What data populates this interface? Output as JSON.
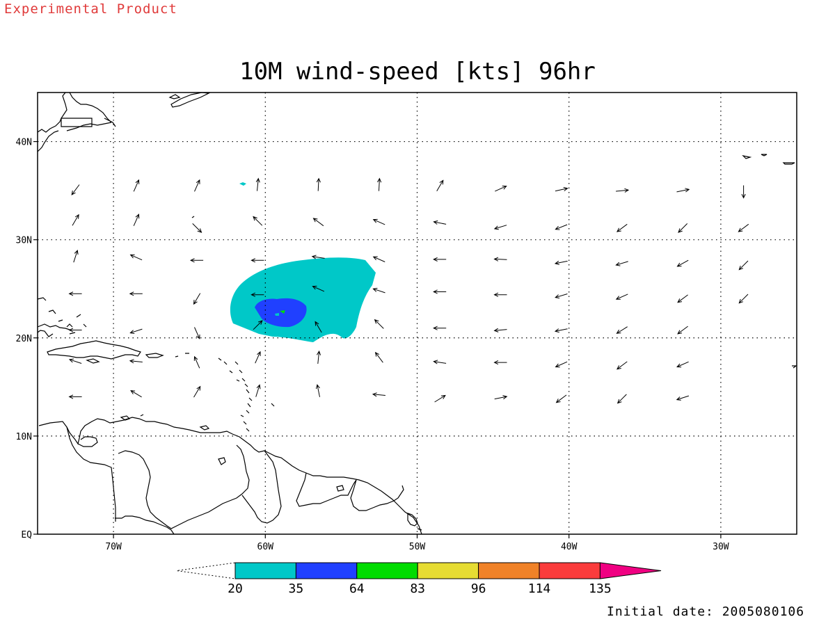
{
  "header": {
    "product_label": "Experimental Product",
    "title": "10M wind-speed [kts] 96hr"
  },
  "map": {
    "lon_ticks": [
      "70W",
      "60W",
      "50W",
      "40W",
      "30W"
    ],
    "lat_ticks": [
      "EQ",
      "10N",
      "20N",
      "30N",
      "40N"
    ],
    "lon_range": [
      -75,
      -25
    ],
    "lat_range": [
      0,
      45
    ],
    "grid": true
  },
  "colorbar": {
    "ticks": [
      "20",
      "35",
      "64",
      "83",
      "96",
      "114",
      "135"
    ],
    "colors": [
      "#00c8c8",
      "#2040ff",
      "#00dc00",
      "#e6dc32",
      "#f08228",
      "#fa3c3c",
      "#f00082"
    ]
  },
  "footer": {
    "initial_date": "Initial date: 2005080106"
  },
  "wind_vectors": [
    {
      "lon": -72.5,
      "lat": 35.1,
      "u": -0.6,
      "v": -0.8
    },
    {
      "lon": -68.5,
      "lat": 35.5,
      "u": 0.4,
      "v": 0.9
    },
    {
      "lon": -64.5,
      "lat": 35.5,
      "u": 0.4,
      "v": 0.9
    },
    {
      "lon": -60.5,
      "lat": 35.6,
      "u": 0.1,
      "v": 1.0
    },
    {
      "lon": -56.5,
      "lat": 35.6,
      "u": 0.05,
      "v": 1.0
    },
    {
      "lon": -52.5,
      "lat": 35.6,
      "u": 0.05,
      "v": 1.0
    },
    {
      "lon": -48.5,
      "lat": 35.5,
      "u": 0.5,
      "v": 0.85
    },
    {
      "lon": -44.5,
      "lat": 35.2,
      "u": 0.9,
      "v": 0.4
    },
    {
      "lon": -40.5,
      "lat": 35.1,
      "u": 0.95,
      "v": 0.2
    },
    {
      "lon": -36.5,
      "lat": 35.0,
      "u": 1.0,
      "v": 0.1
    },
    {
      "lon": -32.5,
      "lat": 35.0,
      "u": 1.0,
      "v": 0.2
    },
    {
      "lon": -28.5,
      "lat": 34.9,
      "u": 0.0,
      "v": -1.0
    },
    {
      "lon": -72.5,
      "lat": 32.0,
      "u": 0.5,
      "v": 0.85
    },
    {
      "lon": -68.5,
      "lat": 32.0,
      "u": 0.4,
      "v": 0.9
    },
    {
      "lon": -64.5,
      "lat": 31.2,
      "u": 0.7,
      "v": -0.7
    },
    {
      "lon": -60.5,
      "lat": 31.9,
      "u": -0.7,
      "v": 0.7
    },
    {
      "lon": -56.5,
      "lat": 31.8,
      "u": -0.8,
      "v": 0.6
    },
    {
      "lon": -52.5,
      "lat": 31.8,
      "u": -0.9,
      "v": 0.4
    },
    {
      "lon": -48.5,
      "lat": 31.7,
      "u": -1.0,
      "v": 0.2
    },
    {
      "lon": -44.5,
      "lat": 31.3,
      "u": -1.0,
      "v": -0.3
    },
    {
      "lon": -40.5,
      "lat": 31.3,
      "u": -1.0,
      "v": -0.4
    },
    {
      "lon": -36.5,
      "lat": 31.2,
      "u": -0.8,
      "v": -0.6
    },
    {
      "lon": -32.5,
      "lat": 31.2,
      "u": -0.7,
      "v": -0.7
    },
    {
      "lon": -28.5,
      "lat": 31.2,
      "u": -0.8,
      "v": -0.6
    },
    {
      "lon": -72.5,
      "lat": 28.3,
      "u": 0.3,
      "v": 0.95
    },
    {
      "lon": -68.5,
      "lat": 28.2,
      "u": -0.9,
      "v": 0.4
    },
    {
      "lon": -64.5,
      "lat": 27.9,
      "u": -1.0,
      "v": 0.0
    },
    {
      "lon": -60.5,
      "lat": 27.9,
      "u": -1.0,
      "v": 0.0
    },
    {
      "lon": -56.5,
      "lat": 28.2,
      "u": -1.0,
      "v": 0.15
    },
    {
      "lon": -52.5,
      "lat": 28.0,
      "u": -0.9,
      "v": 0.4
    },
    {
      "lon": -48.5,
      "lat": 28.0,
      "u": -1.0,
      "v": 0.0
    },
    {
      "lon": -44.5,
      "lat": 28.0,
      "u": -1.0,
      "v": 0.05
    },
    {
      "lon": -40.5,
      "lat": 27.7,
      "u": -1.0,
      "v": -0.2
    },
    {
      "lon": -36.5,
      "lat": 27.6,
      "u": -1.0,
      "v": -0.3
    },
    {
      "lon": -32.5,
      "lat": 27.6,
      "u": -0.9,
      "v": -0.5
    },
    {
      "lon": -28.5,
      "lat": 27.4,
      "u": -0.7,
      "v": -0.7
    },
    {
      "lon": -72.5,
      "lat": 24.5,
      "u": -1.0,
      "v": 0.0
    },
    {
      "lon": -68.5,
      "lat": 24.5,
      "u": -1.0,
      "v": 0.0
    },
    {
      "lon": -64.5,
      "lat": 24.0,
      "u": -0.5,
      "v": -0.85
    },
    {
      "lon": -60.5,
      "lat": 24.4,
      "u": -1.0,
      "v": 0.0
    },
    {
      "lon": -56.5,
      "lat": 25.0,
      "u": -0.9,
      "v": 0.4
    },
    {
      "lon": -52.5,
      "lat": 24.8,
      "u": -0.9,
      "v": 0.3
    },
    {
      "lon": -48.5,
      "lat": 24.7,
      "u": -1.0,
      "v": 0.0
    },
    {
      "lon": -44.5,
      "lat": 24.4,
      "u": -1.0,
      "v": 0.0
    },
    {
      "lon": -40.5,
      "lat": 24.3,
      "u": -1.0,
      "v": -0.3
    },
    {
      "lon": -36.5,
      "lat": 24.2,
      "u": -0.9,
      "v": -0.4
    },
    {
      "lon": -32.5,
      "lat": 24.0,
      "u": -0.8,
      "v": -0.6
    },
    {
      "lon": -28.5,
      "lat": 24.0,
      "u": -0.7,
      "v": -0.7
    },
    {
      "lon": -72.5,
      "lat": 20.8,
      "u": -1.0,
      "v": 0.0
    },
    {
      "lon": -68.5,
      "lat": 20.7,
      "u": -0.9,
      "v": -0.3
    },
    {
      "lon": -64.5,
      "lat": 20.5,
      "u": 0.4,
      "v": -0.9
    },
    {
      "lon": -60.5,
      "lat": 21.3,
      "u": 0.7,
      "v": 0.7
    },
    {
      "lon": -56.5,
      "lat": 21.1,
      "u": -0.5,
      "v": 0.85
    },
    {
      "lon": -52.5,
      "lat": 21.4,
      "u": -0.7,
      "v": 0.7
    },
    {
      "lon": -48.5,
      "lat": 21.0,
      "u": -1.0,
      "v": 0.0
    },
    {
      "lon": -44.5,
      "lat": 20.8,
      "u": -1.0,
      "v": -0.1
    },
    {
      "lon": -40.5,
      "lat": 20.8,
      "u": -1.0,
      "v": -0.2
    },
    {
      "lon": -36.5,
      "lat": 20.8,
      "u": -0.8,
      "v": -0.5
    },
    {
      "lon": -32.5,
      "lat": 20.8,
      "u": -0.8,
      "v": -0.6
    },
    {
      "lon": -72.5,
      "lat": 17.6,
      "u": -0.9,
      "v": 0.3
    },
    {
      "lon": -68.5,
      "lat": 17.6,
      "u": -1.0,
      "v": 0.1
    },
    {
      "lon": -64.5,
      "lat": 17.5,
      "u": -0.4,
      "v": 0.9
    },
    {
      "lon": -60.5,
      "lat": 18.0,
      "u": 0.4,
      "v": 0.9
    },
    {
      "lon": -56.5,
      "lat": 18.0,
      "u": 0.1,
      "v": 1.0
    },
    {
      "lon": -52.5,
      "lat": 18.0,
      "u": -0.6,
      "v": 0.8
    },
    {
      "lon": -48.5,
      "lat": 17.5,
      "u": -1.0,
      "v": 0.15
    },
    {
      "lon": -44.5,
      "lat": 17.5,
      "u": -1.0,
      "v": 0.0
    },
    {
      "lon": -40.5,
      "lat": 17.3,
      "u": -0.9,
      "v": -0.4
    },
    {
      "lon": -36.5,
      "lat": 17.2,
      "u": -0.8,
      "v": -0.6
    },
    {
      "lon": -32.5,
      "lat": 17.3,
      "u": -0.9,
      "v": -0.4
    },
    {
      "lon": -72.5,
      "lat": 14.0,
      "u": -1.0,
      "v": 0.0
    },
    {
      "lon": -68.5,
      "lat": 14.3,
      "u": -0.85,
      "v": 0.5
    },
    {
      "lon": -64.5,
      "lat": 14.5,
      "u": 0.5,
      "v": 0.85
    },
    {
      "lon": -60.5,
      "lat": 14.6,
      "u": 0.3,
      "v": 0.95
    },
    {
      "lon": -56.5,
      "lat": 14.6,
      "u": -0.2,
      "v": 0.98
    },
    {
      "lon": -52.5,
      "lat": 14.2,
      "u": -1.0,
      "v": 0.1
    },
    {
      "lon": -48.5,
      "lat": 13.8,
      "u": 0.8,
      "v": 0.5
    },
    {
      "lon": -44.5,
      "lat": 13.9,
      "u": 1.0,
      "v": 0.2
    },
    {
      "lon": -40.5,
      "lat": 13.8,
      "u": -0.8,
      "v": -0.6
    },
    {
      "lon": -36.5,
      "lat": 13.8,
      "u": -0.7,
      "v": -0.7
    },
    {
      "lon": -32.5,
      "lat": 13.9,
      "u": -0.95,
      "v": -0.3
    }
  ]
}
